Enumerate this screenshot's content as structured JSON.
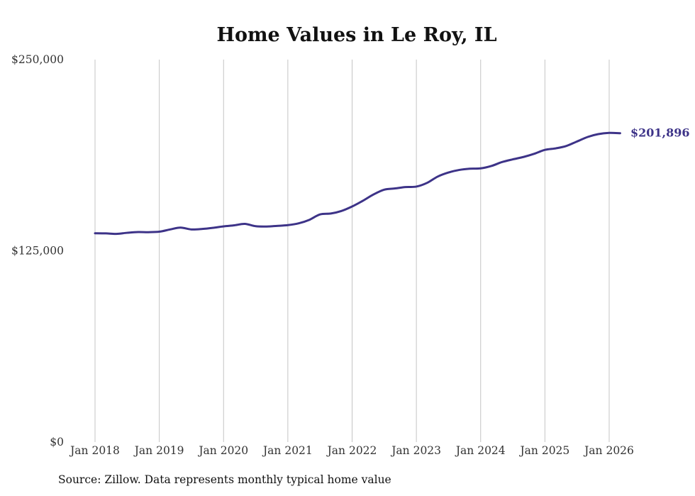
{
  "chart_data": {
    "type": "line",
    "title": "Home Values in Le Roy, IL",
    "xlabel": "",
    "ylabel": "",
    "ylim": [
      0,
      250000
    ],
    "grid": "vertical",
    "y_ticks": [
      {
        "value": 0,
        "label": "$0"
      },
      {
        "value": 125000,
        "label": "$125,000"
      },
      {
        "value": 250000,
        "label": "$250,000"
      }
    ],
    "x_ticks": [
      {
        "value": 2018,
        "label": "Jan 2018"
      },
      {
        "value": 2019,
        "label": "Jan 2019"
      },
      {
        "value": 2020,
        "label": "Jan 2020"
      },
      {
        "value": 2021,
        "label": "Jan 2021"
      },
      {
        "value": 2022,
        "label": "Jan 2022"
      },
      {
        "value": 2023,
        "label": "Jan 2023"
      },
      {
        "value": 2024,
        "label": "Jan 2024"
      },
      {
        "value": 2025,
        "label": "Jan 2025"
      },
      {
        "value": 2026,
        "label": "Jan 2026"
      }
    ],
    "series": [
      {
        "name": "Typical home value",
        "color": "#3d3388",
        "x": [
          2018.0,
          2018.17,
          2018.33,
          2018.5,
          2018.67,
          2018.83,
          2019.0,
          2019.17,
          2019.33,
          2019.5,
          2019.67,
          2019.83,
          2020.0,
          2020.17,
          2020.33,
          2020.5,
          2020.67,
          2020.83,
          2021.0,
          2021.17,
          2021.33,
          2021.5,
          2021.67,
          2021.83,
          2022.0,
          2022.17,
          2022.33,
          2022.5,
          2022.67,
          2022.83,
          2023.0,
          2023.17,
          2023.33,
          2023.5,
          2023.67,
          2023.83,
          2024.0,
          2024.17,
          2024.33,
          2024.5,
          2024.67,
          2024.83,
          2025.0,
          2025.17,
          2025.33,
          2025.5,
          2025.67,
          2025.83,
          2026.0,
          2026.17
        ],
        "values": [
          136500,
          136400,
          136100,
          136800,
          137300,
          137200,
          137500,
          139000,
          140200,
          139000,
          139300,
          140000,
          141000,
          141700,
          142600,
          141100,
          140900,
          141300,
          141800,
          143000,
          145200,
          148800,
          149400,
          151000,
          154000,
          157800,
          161800,
          165000,
          165800,
          166700,
          167000,
          169500,
          173500,
          176200,
          177900,
          178700,
          178900,
          180500,
          183000,
          184800,
          186400,
          188400,
          191000,
          192000,
          193500,
          196500,
          199500,
          201300,
          202100,
          201896
        ]
      }
    ],
    "end_label": "$201,896"
  },
  "source_note": "Source: Zillow. Data represents monthly typical home value"
}
